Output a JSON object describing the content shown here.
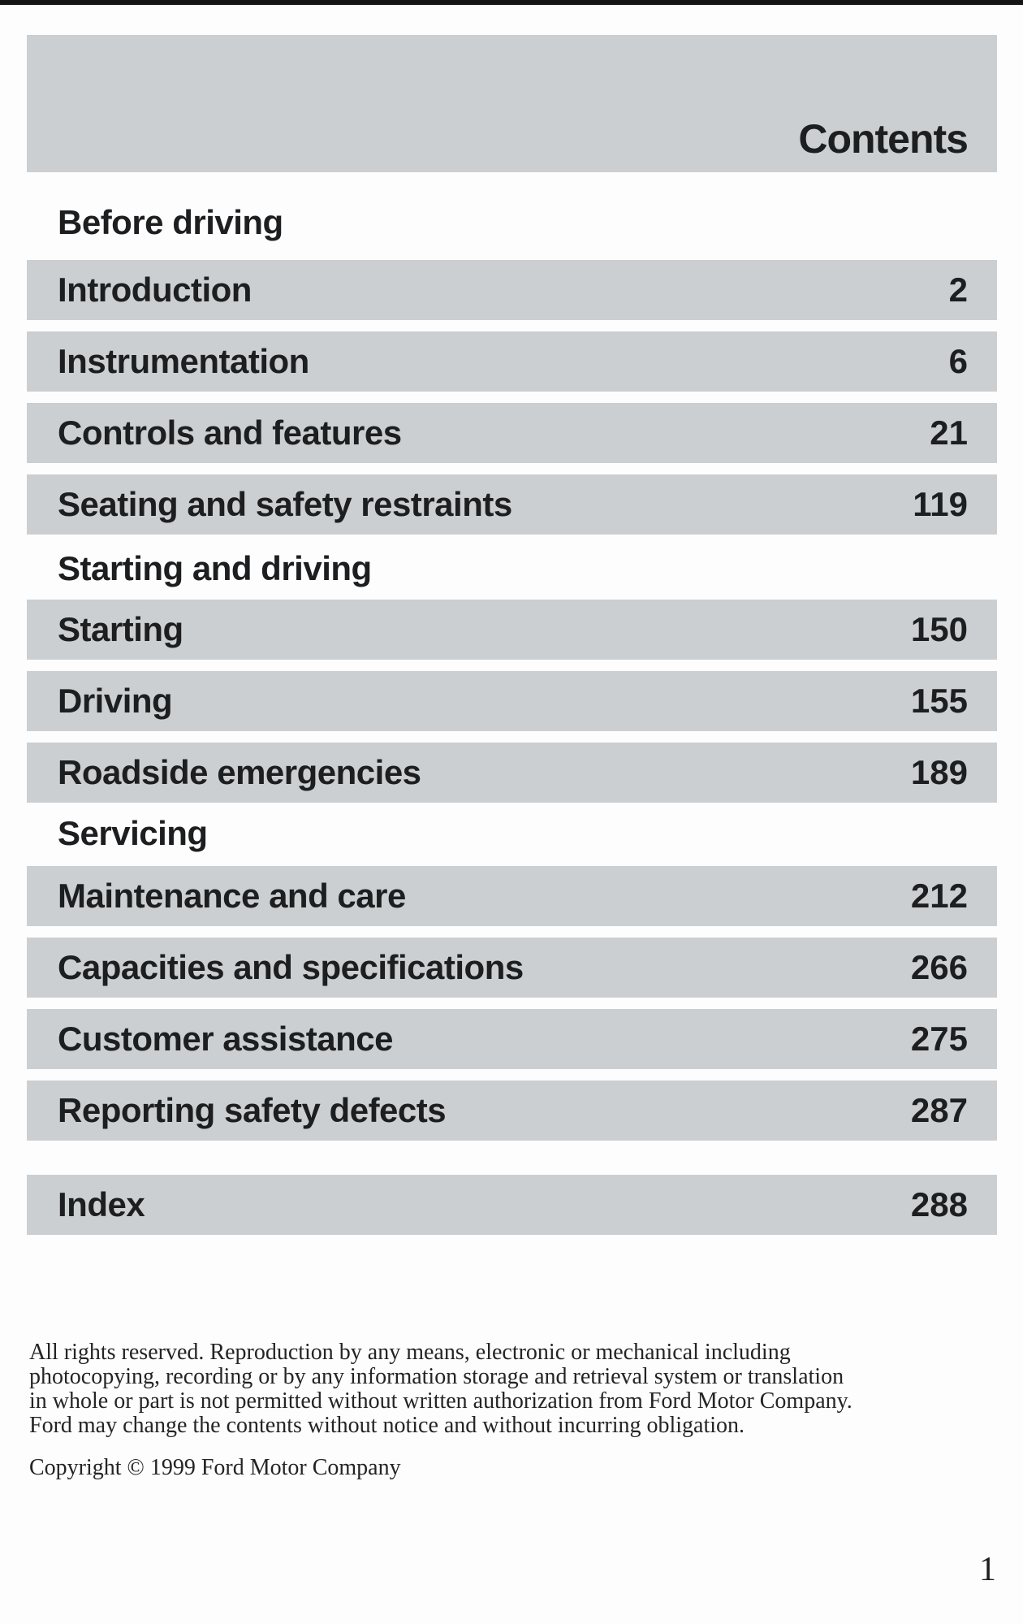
{
  "header": {
    "title": "Contents",
    "page_number": "1"
  },
  "sections": [
    {
      "heading": "Before driving",
      "items": [
        {
          "label": "Introduction",
          "page": "2"
        },
        {
          "label": "Instrumentation",
          "page": "6"
        },
        {
          "label": "Controls and features",
          "page": "21"
        },
        {
          "label": "Seating and safety restraints",
          "page": "119"
        }
      ]
    },
    {
      "heading": "Starting and driving",
      "items": [
        {
          "label": "Starting",
          "page": "150"
        },
        {
          "label": "Driving",
          "page": "155"
        },
        {
          "label": "Roadside emergencies",
          "page": "189"
        }
      ]
    },
    {
      "heading": "Servicing",
      "items": [
        {
          "label": "Maintenance and care",
          "page": "212"
        },
        {
          "label": "Capacities and specifications",
          "page": "266"
        },
        {
          "label": "Customer assistance",
          "page": "275"
        },
        {
          "label": "Reporting safety defects",
          "page": "287"
        }
      ]
    }
  ],
  "index_item": {
    "label": "Index",
    "page": "288"
  },
  "footer": {
    "lines": [
      "All rights reserved. Reproduction by any means, electronic or mechanical including",
      "photocopying, recording or by any information storage and retrieval system or translation",
      "in whole or part is not permitted without written authorization from Ford Motor Company.",
      "Ford may change the contents without notice and without incurring obligation."
    ],
    "copyright": "Copyright © 1999 Ford Motor Company"
  }
}
